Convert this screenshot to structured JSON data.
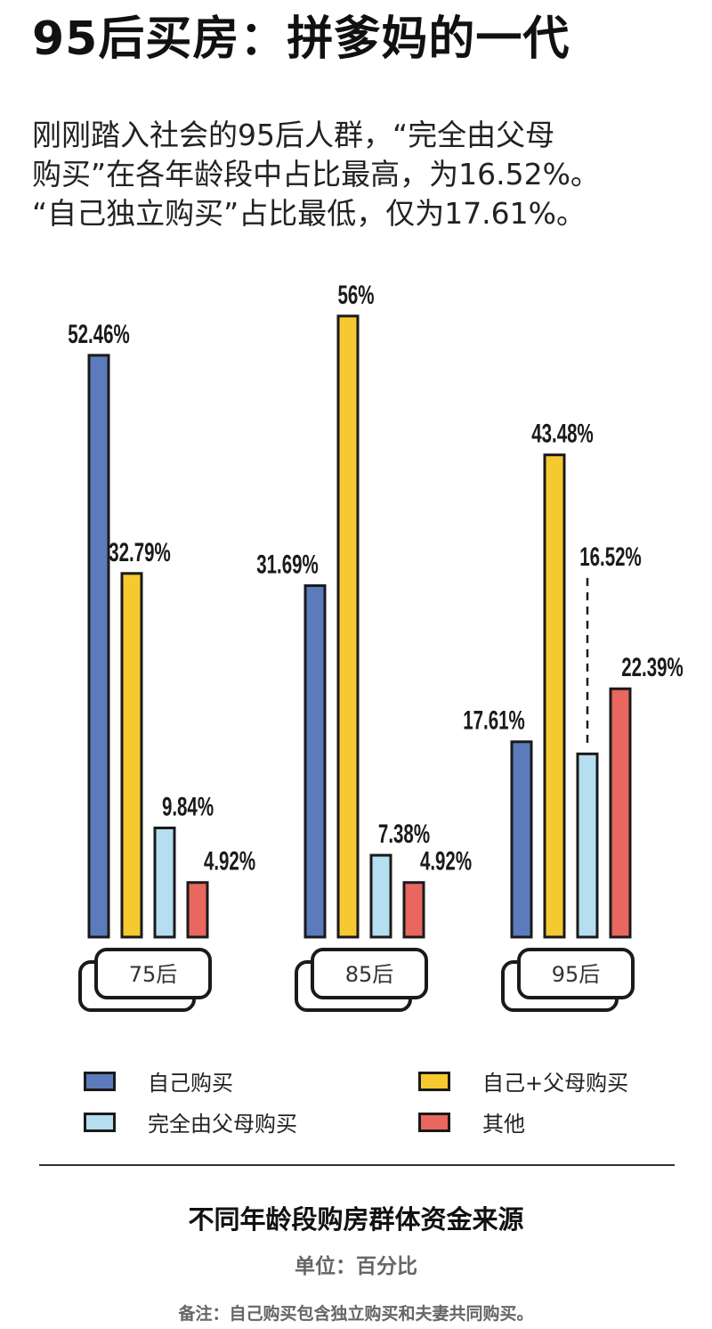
{
  "title": "95后买房：拼爹妈的一代",
  "subtitle_lines": [
    "刚刚踏入社会的95后人群，“完全由父母",
    "购买”在各年龄段中占比最高，为16.52%。",
    "“自己独立购买”占比最低，仅为17.61%。"
  ],
  "chart_data": {
    "type": "bar",
    "title": "不同年龄段购房群体资金来源",
    "unit": "单位：百分比",
    "categories": [
      "75后",
      "85后",
      "95后"
    ],
    "series": [
      {
        "name": "自己购买",
        "color": "#5b7bbd",
        "values": [
          52.46,
          31.69,
          17.61
        ]
      },
      {
        "name": "自己+父母购买",
        "color": "#f6c931",
        "values": [
          32.79,
          56,
          43.48
        ]
      },
      {
        "name": "完全由父母购买",
        "color": "#b5def0",
        "values": [
          9.84,
          7.38,
          16.52
        ]
      },
      {
        "name": "其他",
        "color": "#e8675e",
        "values": [
          4.92,
          4.92,
          22.39
        ]
      }
    ],
    "value_labels": [
      [
        "52.46%",
        "32.79%",
        "9.84%",
        "4.92%"
      ],
      [
        "31.69%",
        "56%",
        "7.38%",
        "4.92%"
      ],
      [
        "17.61%",
        "43.48%",
        "16.52%",
        "22.39%"
      ]
    ],
    "ylim": [
      0,
      60
    ],
    "legend": "bottom",
    "grid": false
  },
  "footnote": "备注：自己购买包含独立购买和夫妻共同购买。"
}
